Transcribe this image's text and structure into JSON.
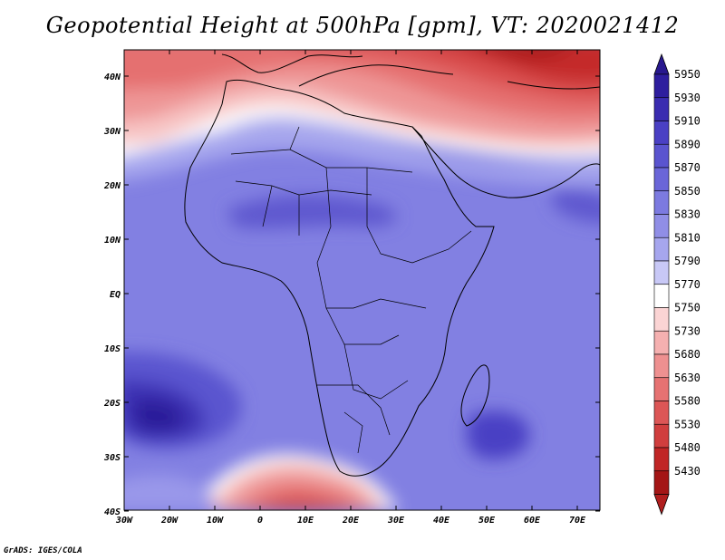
{
  "title": "Geopotential Height at 500hPa [gpm], VT: 2020021412",
  "credit": "GrADS: IGES/COLA",
  "map": {
    "region": "Africa",
    "lon_range": [
      -30,
      75
    ],
    "lat_range": [
      -40,
      45
    ],
    "x_ticks": [
      "30W",
      "20W",
      "10W",
      "0",
      "10E",
      "20E",
      "30E",
      "40E",
      "50E",
      "60E",
      "70E"
    ],
    "y_ticks": [
      "40N",
      "30N",
      "20N",
      "10N",
      "EQ",
      "10S",
      "20S",
      "30S",
      "40S"
    ]
  },
  "colorbar": {
    "levels": [
      "5950",
      "5930",
      "5910",
      "5890",
      "5870",
      "5850",
      "5830",
      "5810",
      "5790",
      "5770",
      "5750",
      "5730",
      "5680",
      "5630",
      "5580",
      "5530",
      "5480",
      "5430"
    ],
    "colors": [
      "#2e1e9e",
      "#3a2cb0",
      "#4a40c4",
      "#5a54cf",
      "#6a66d8",
      "#7c7ae0",
      "#908ee6",
      "#a6a6ee",
      "#c8c8f6",
      "#ffffff",
      "#fbd4d4",
      "#f5b0b0",
      "#ee9090",
      "#e67272",
      "#dc5656",
      "#d03e3e",
      "#c02626",
      "#a41616"
    ],
    "top_arrow_color": "#28188e",
    "bottom_arrow_color": "#b01e1e"
  }
}
